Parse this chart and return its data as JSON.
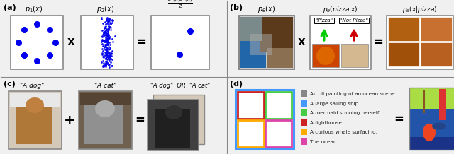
{
  "fig_width": 6.4,
  "fig_height": 2.18,
  "panel_a": {
    "label": "(a)",
    "p1_label": "$p_1(x)$",
    "p2_label": "$p_2(x)$",
    "result_label": "$\\frac{p_1(x)p_2(x)}{Z}$",
    "op1": "X",
    "op2": "=",
    "dot_color": "#0000ee",
    "box_edge": "#888888"
  },
  "panel_b": {
    "label": "(b)",
    "p_theta_label": "$p_{\\theta}(x)$",
    "classifier_label": "$p_{\\theta}(pizza|x)$",
    "result_label": "$p_{\\theta}(x|pizza)$",
    "op1": "X",
    "op2": "=",
    "pizza_label": "\"Pizza\"",
    "not_pizza_label": "\"Not Pizza\"",
    "arrow_up_color": "#00cc00",
    "arrow_down_color": "#cc0000",
    "box_edge": "#888888"
  },
  "panel_c": {
    "label": "(c)",
    "dog_label": "\"A dog\"",
    "cat_label": "\"A cat\"",
    "result_label": "\"A dog\"  OR  \"A cat\"",
    "op1": "+",
    "op2": "=",
    "box_edge": "#888888"
  },
  "panel_d": {
    "label": "(d)",
    "op": "=",
    "legend_items": [
      {
        "color": "#888888",
        "text": "An oil painting of an ocean scene."
      },
      {
        "color": "#4499ff",
        "text": "A large sailing ship."
      },
      {
        "color": "#44cc44",
        "text": "A mermaid sunning herself."
      },
      {
        "color": "#cc2222",
        "text": "A lighthouse."
      },
      {
        "color": "#ffaa00",
        "text": "A curious whale surfacing."
      },
      {
        "color": "#dd44aa",
        "text": "The ocean."
      }
    ],
    "box_outer": "#4499ff",
    "box_tl": "#cc2222",
    "box_tr": "#44cc44",
    "box_bl": "#ffaa00",
    "box_br": "#dd44aa"
  },
  "divider_color": "#888888",
  "bg_color": "#f0f0f0"
}
